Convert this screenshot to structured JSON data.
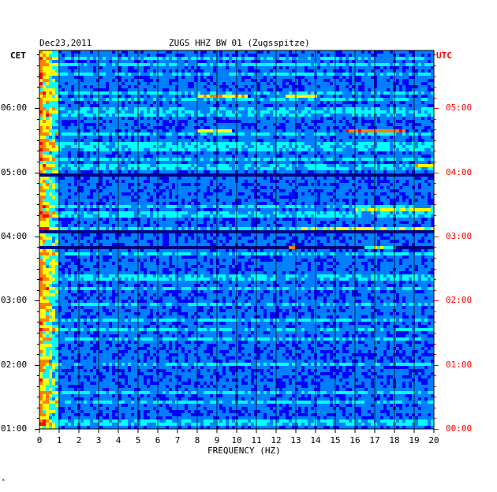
{
  "header": {
    "date": "Dec23,2011",
    "station": "ZUGS HHZ BW 01 (Zugsspitze)"
  },
  "axis": {
    "left_zone": "CET",
    "right_zone": "UTC",
    "xlabel": "FREQUENCY (HZ)",
    "utc_color": "#ff0000"
  },
  "corner_mark": "*",
  "chart_data": {
    "type": "heatmap",
    "title": "ZUGS HHZ BW 01 (Zugsspitze)",
    "xlabel": "FREQUENCY (HZ)",
    "x_ticks": [
      0,
      1,
      2,
      3,
      4,
      5,
      6,
      7,
      8,
      9,
      10,
      11,
      12,
      13,
      14,
      15,
      16,
      17,
      18,
      19,
      20
    ],
    "xlim": [
      0,
      20
    ],
    "left_time_labels": [
      "06:00",
      "05:00",
      "04:00",
      "03:00",
      "02:00",
      "01:00"
    ],
    "right_time_labels": [
      "05:00",
      "04:00",
      "03:00",
      "02:00",
      "01:00",
      "00:00"
    ],
    "time_label_hours_cet": [
      6,
      5,
      4,
      3,
      2,
      1
    ],
    "time_range_cet_hours": [
      1,
      6.9
    ],
    "colormap": [
      "#00008b",
      "#0000ff",
      "#0080ff",
      "#00ffff",
      "#ffff00",
      "#ff8000",
      "#ff0000"
    ],
    "features": [
      {
        "time_cet": 6.2,
        "freq": [
          8,
          10.5
        ],
        "level": 0.85
      },
      {
        "time_cet": 6.2,
        "freq": [
          12.5,
          14
        ],
        "level": 0.7
      },
      {
        "time_cet": 5.82,
        "freq": [
          18.2,
          20
        ],
        "level": 0.95
      },
      {
        "time_cet": 5.65,
        "freq": [
          15.5,
          18.5
        ],
        "level": 0.95
      },
      {
        "time_cet": 5.65,
        "freq": [
          8,
          9.8
        ],
        "level": 0.75
      },
      {
        "time_cet": 5.03,
        "freq": [
          18,
          20
        ],
        "level": 0.95
      },
      {
        "time_cet": 5.1,
        "freq": [
          19,
          20
        ],
        "level": 0.8
      },
      {
        "time_cet": 4.42,
        "freq": [
          16,
          20
        ],
        "level": 0.75
      },
      {
        "time_cet": 4.11,
        "freq": [
          13,
          20
        ],
        "level": 0.7
      },
      {
        "time_cet": 3.82,
        "freq": [
          12.6,
          12.9
        ],
        "level": 0.9
      },
      {
        "time_cet": 3.82,
        "freq": [
          16.5,
          18
        ],
        "level": 0.6
      },
      {
        "time_cet": 3.46,
        "freq": [
          17.2,
          18
        ],
        "level": 0.9
      }
    ],
    "dark_rows_cet": [
      5.62,
      4.95,
      4.15,
      4.08,
      3.82,
      3.45
    ]
  }
}
